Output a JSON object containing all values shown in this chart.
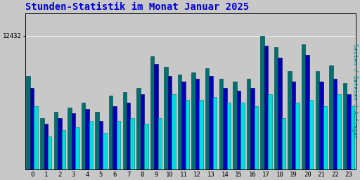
{
  "title": "Stunden-Statistik im Monat Januar 2025",
  "ylabel_right": "Seiten / Dateien / Anfragen",
  "x_labels": [
    "0",
    "1",
    "2",
    "3",
    "4",
    "5",
    "6",
    "7",
    "8",
    "9",
    "10",
    "11",
    "12",
    "13",
    "14",
    "15",
    "16",
    "17",
    "18",
    "19",
    "20",
    "21",
    "22",
    "23"
  ],
  "background_color": "#c8c8c8",
  "plot_bg_color": "#c8c8c8",
  "title_color": "#0000dd",
  "title_fontsize": 10,
  "bar_width": 0.28,
  "ymin": 8000,
  "ymax": 12432,
  "ytick_val": 12432,
  "series": {
    "pages": {
      "color": "#007070",
      "values": [
        11100,
        9700,
        9900,
        10050,
        10200,
        9900,
        10450,
        10550,
        10700,
        11750,
        11400,
        11150,
        11200,
        11350,
        11000,
        10900,
        11000,
        12432,
        12050,
        11250,
        12150,
        11250,
        11450,
        10850
      ]
    },
    "files": {
      "color": "#0000bb",
      "values": [
        10700,
        9500,
        9700,
        9850,
        10000,
        9600,
        10100,
        10200,
        10500,
        11500,
        11100,
        10900,
        11000,
        11100,
        10700,
        10600,
        10700,
        12100,
        11700,
        10900,
        11800,
        10900,
        11000,
        10500
      ]
    },
    "requests": {
      "color": "#00dddd",
      "values": [
        10100,
        9100,
        9300,
        9400,
        9600,
        9200,
        9600,
        9700,
        9500,
        9700,
        10500,
        10300,
        10300,
        10400,
        10200,
        10200,
        10100,
        10500,
        9700,
        10200,
        10300,
        10100,
        10500,
        10100
      ]
    }
  }
}
